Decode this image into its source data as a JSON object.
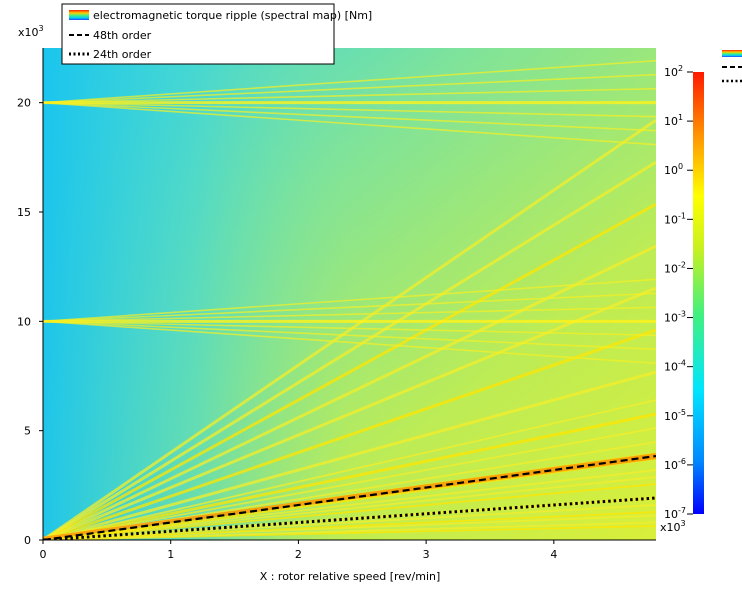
{
  "chart_data": {
    "type": "heatmap",
    "xlabel": "X :  rotor relative speed [rev/min]",
    "ylabel": "",
    "x_multiplier": "x10",
    "y_multiplier": "x10",
    "multiplier_exponent": "3",
    "xlim": [
      0,
      4800
    ],
    "ylim": [
      0,
      22500
    ],
    "x_ticks": [
      {
        "value": 0,
        "label": "0"
      },
      {
        "value": 1000,
        "label": "1"
      },
      {
        "value": 2000,
        "label": "2"
      },
      {
        "value": 3000,
        "label": "3"
      },
      {
        "value": 4000,
        "label": "4"
      }
    ],
    "y_ticks": [
      {
        "value": 0,
        "label": "0"
      },
      {
        "value": 5000,
        "label": "5"
      },
      {
        "value": 10000,
        "label": "10"
      },
      {
        "value": 15000,
        "label": "15"
      },
      {
        "value": 20000,
        "label": "20"
      }
    ],
    "colorbar": {
      "scale": "log",
      "range": [
        1e-07,
        100
      ],
      "ticks": [
        {
          "base": "10",
          "exp": "2"
        },
        {
          "base": "10",
          "exp": "1"
        },
        {
          "base": "10",
          "exp": "0"
        },
        {
          "base": "10",
          "exp": "-1"
        },
        {
          "base": "10",
          "exp": "-2"
        },
        {
          "base": "10",
          "exp": "-3"
        },
        {
          "base": "10",
          "exp": "-4"
        },
        {
          "base": "10",
          "exp": "-5"
        },
        {
          "base": "10",
          "exp": "-6"
        },
        {
          "base": "10",
          "exp": "-7"
        }
      ]
    },
    "legend": {
      "placement": "top-left",
      "entries": [
        {
          "label": "electromagnetic torque ripple (spectral map) [Nm]",
          "style": "colormap"
        },
        {
          "label": "48th order",
          "style": "dashed",
          "color": "#000000"
        },
        {
          "label": "24th order",
          "style": "dotted",
          "color": "#000000"
        }
      ]
    },
    "order_lines": [
      {
        "order": 48,
        "x": [
          0,
          4800
        ],
        "y": [
          0,
          3840
        ]
      },
      {
        "order": 24,
        "x": [
          0,
          4800
        ],
        "y": [
          0,
          1920
        ]
      }
    ],
    "grid": false
  }
}
